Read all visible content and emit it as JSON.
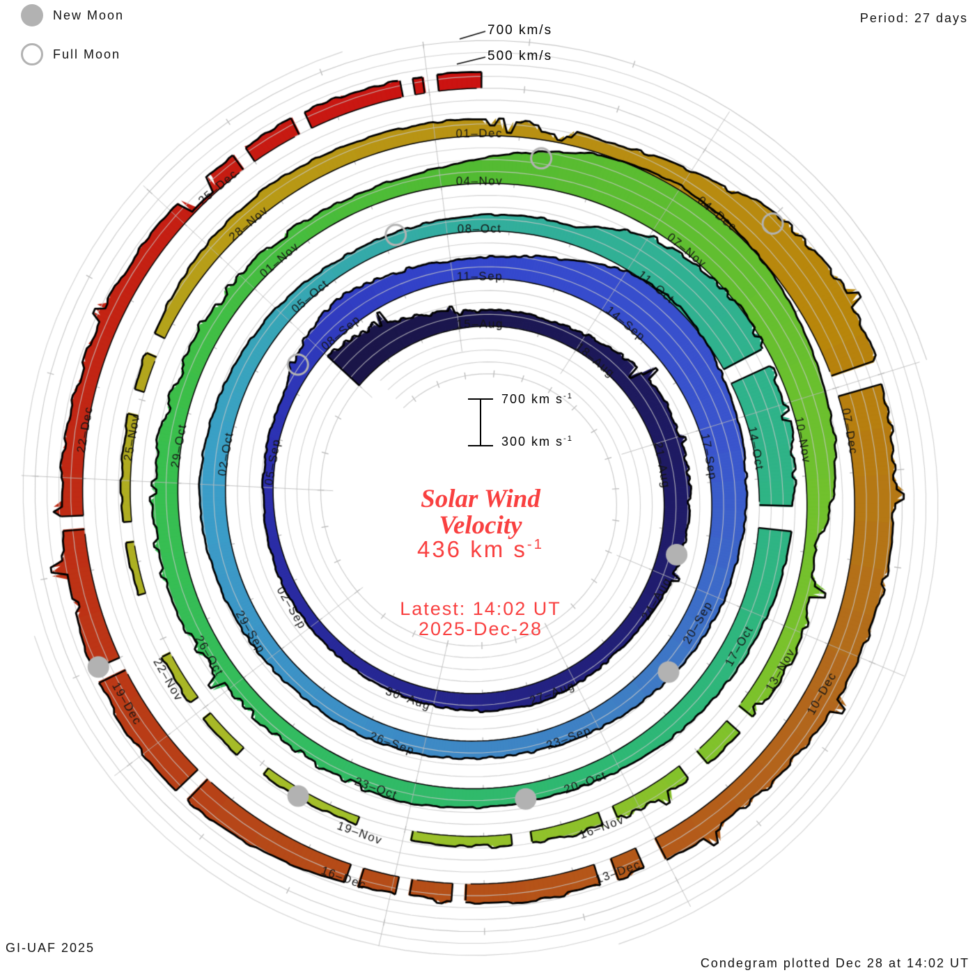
{
  "legend": {
    "new_moon": "New Moon",
    "full_moon": "Full Moon"
  },
  "header": {
    "period": "Period: 27 days"
  },
  "axis": {
    "top_700": "700 km/s",
    "top_500": "500 km/s",
    "scale_top": "700 km s",
    "scale_top_sup": "-1",
    "scale_bottom": "300 km s",
    "scale_bottom_sup": "-1"
  },
  "center": {
    "title_line1": "Solar Wind",
    "title_line2": "Velocity",
    "speed_value": "436 km s",
    "speed_sup": "-1",
    "latest_line1": "Latest: 14:02 UT",
    "latest_line2": "2025-Dec-28"
  },
  "footer": {
    "left": "GI-UAF 2025",
    "right": "Condegram plotted Dec 28 at 14:02 UT"
  },
  "colors": {
    "accent_red": "#f94040",
    "moon_gray": "#b2b2b2",
    "grid_gray": "#c4c4c4",
    "ink": "#000000"
  },
  "chart_data": {
    "type": "spiral-time-series-condegram",
    "title": "Solar Wind Velocity",
    "period_days": 27,
    "baseline_velocity_kms": 300,
    "gridline_step_kms": 100,
    "scale_bar_kms": [
      300,
      700
    ],
    "current_velocity_kms": 436,
    "latest_ut": "14:02 UT 2025-Dec-28",
    "date_labels": [
      "15-Aug",
      "18-Aug",
      "21-Aug",
      "24-Aug",
      "27-Aug",
      "30-Aug",
      "02-Sep",
      "05-Sep",
      "08-Sep",
      "11-Sep",
      "14-Sep",
      "17-Sep",
      "20-Sep",
      "23-Sep",
      "26-Sep",
      "29-Sep",
      "02-Oct",
      "05-Oct",
      "08-Oct",
      "11-Oct",
      "14-Oct",
      "17-Oct",
      "20-Oct",
      "23-Oct",
      "26-Oct",
      "29-Oct",
      "01-Nov",
      "04-Nov",
      "07-Nov",
      "10-Nov",
      "13-Nov",
      "16-Nov",
      "19-Nov",
      "22-Nov",
      "25-Nov",
      "28-Nov",
      "01-Dec",
      "04-Dec",
      "07-Dec",
      "10-Dec",
      "13-Dec",
      "16-Dec",
      "19-Dec",
      "22-Dec",
      "25-Dec"
    ],
    "label_step_days": 3,
    "series": {
      "name": "solar wind velocity",
      "unit": "km/s",
      "start_date": "2025-08-12",
      "step_days": 1,
      "values": [
        660,
        600,
        510,
        430,
        440,
        430,
        450,
        500,
        540,
        530,
        520,
        500,
        480,
        450,
        435,
        450,
        465,
        450,
        430,
        415,
        400,
        395,
        400,
        390,
        385,
        390,
        400,
        510,
        560,
        500,
        470,
        490,
        560,
        690,
        730,
        680,
        630,
        600,
        570,
        550,
        520,
        490,
        465,
        450,
        445,
        455,
        460,
        450,
        465,
        485,
        505,
        520,
        500,
        475,
        450,
        425,
        415,
        425,
        440,
        455,
        640,
        700,
        690,
        650,
        610,
        570,
        535,
        505,
        480,
        460,
        445,
        455,
        475,
        460,
        440,
        450,
        490,
        530,
        505,
        475,
        455,
        465,
        445,
        435,
        455,
        560,
        690,
        740,
        710,
        660,
        610,
        560,
        385,
        480,
        460,
        440,
        425,
        405,
        390,
        375,
        365,
        375,
        385,
        375,
        365,
        375,
        385,
        405,
        445,
        465,
        450,
        445,
        430,
        400,
        490,
        650,
        710,
        690,
        650,
        615,
        585,
        550,
        520,
        495,
        475,
        460,
        445,
        490,
        540,
        560,
        540,
        510,
        480,
        455,
        470,
        455,
        445,
        450,
        436
      ]
    },
    "time_origin_label": "days since 2025-08-15 00UT",
    "data_start_day": -3,
    "data_end_day": 135.55,
    "gaps_days": [
      [
        59.2,
        59.45
      ],
      [
        61.4,
        61.75
      ],
      [
        91.2,
        91.45
      ],
      [
        92.0,
        92.3
      ],
      [
        93.3,
        93.5
      ],
      [
        94.4,
        94.65
      ],
      [
        95.9,
        96.6
      ],
      [
        97.9,
        98.3
      ],
      [
        98.9,
        99.15
      ],
      [
        99.8,
        100.6
      ],
      [
        101.25,
        101.5
      ],
      [
        102.8,
        103.1
      ],
      [
        103.55,
        103.8
      ],
      [
        113.85,
        114.1
      ],
      [
        120.0,
        120.25
      ],
      [
        120.55,
        120.75
      ],
      [
        122.2,
        122.35
      ],
      [
        122.8,
        122.95
      ],
      [
        123.35,
        123.5
      ],
      [
        125.35,
        125.5
      ],
      [
        126.85,
        127.0
      ],
      [
        128.45,
        128.6
      ],
      [
        132.85,
        133.0
      ],
      [
        133.55,
        133.7
      ],
      [
        134.72,
        134.85
      ],
      [
        134.95,
        135.1
      ]
    ],
    "dips": [
      [
        109.2,
        109.6,
        370
      ],
      [
        132.15,
        132.5,
        320
      ]
    ],
    "high_variance_days": [
      [
        -3,
        0.5,
        2.2
      ],
      [
        3,
        9,
        1.7
      ],
      [
        23,
        26.5,
        1.6
      ],
      [
        56.5,
        61.5,
        2.6
      ],
      [
        69.5,
        79,
        3.0
      ],
      [
        87.5,
        91,
        2.6
      ],
      [
        92.5,
        95,
        2.2
      ],
      [
        108.5,
        112,
        1.5
      ],
      [
        112,
        123,
        2.3
      ],
      [
        126,
        131.5,
        1.8
      ]
    ],
    "color_anchors": [
      [
        -3,
        "#1a1548"
      ],
      [
        0,
        "#1b174f"
      ],
      [
        8,
        "#201c6a"
      ],
      [
        21,
        "#2c2fae"
      ],
      [
        27,
        "#3446cd"
      ],
      [
        33,
        "#3a55cd"
      ],
      [
        38,
        "#3f7ec4"
      ],
      [
        48,
        "#3b9fc8"
      ],
      [
        54,
        "#32ae9e"
      ],
      [
        60,
        "#2fb389"
      ],
      [
        66,
        "#2eb873"
      ],
      [
        75,
        "#38bf4e"
      ],
      [
        81,
        "#52bb32"
      ],
      [
        87,
        "#6cc02e"
      ],
      [
        91,
        "#7ec22b"
      ],
      [
        97,
        "#a4bf2a"
      ],
      [
        102,
        "#b0ab20"
      ],
      [
        105,
        "#b89b16"
      ],
      [
        110,
        "#b88d12"
      ],
      [
        113,
        "#b8860b"
      ],
      [
        117,
        "#b2691c"
      ],
      [
        121,
        "#b55318"
      ],
      [
        124,
        "#b54918"
      ],
      [
        129,
        "#c02814"
      ],
      [
        135.6,
        "#cc1111"
      ]
    ],
    "moons": {
      "new_moon_days": [
        8.5,
        37.5,
        67.4,
        97.4,
        127.0
      ],
      "full_moon_days": [
        23.5,
        53.2,
        82.3,
        112.05
      ]
    },
    "legend_position": "top-left",
    "grid_on": true
  }
}
